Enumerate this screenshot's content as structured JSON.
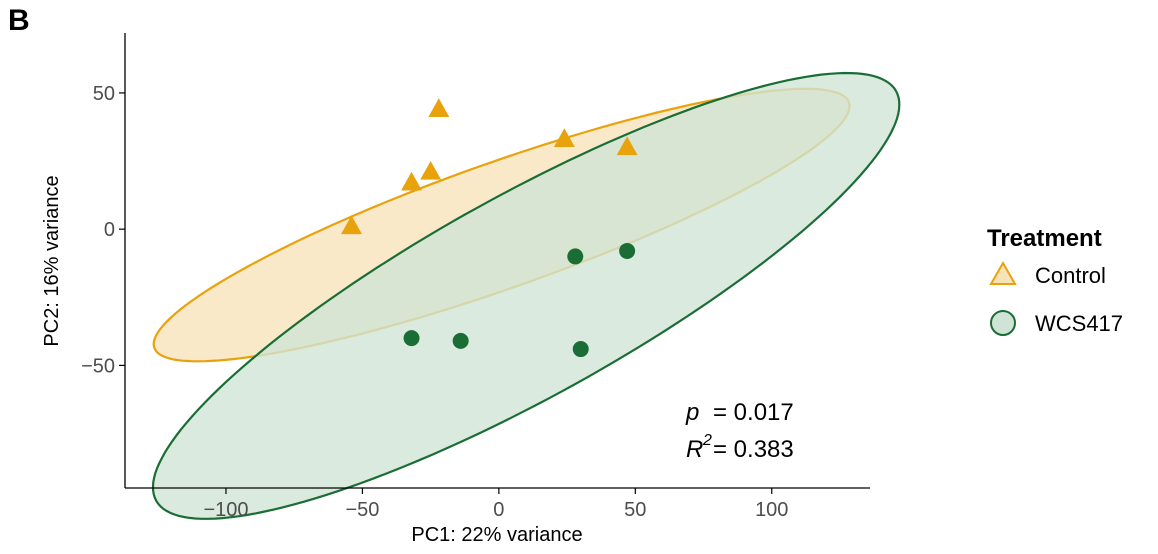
{
  "panel_label": "B",
  "chart_data": {
    "type": "scatter",
    "xlabel": "PC1: 22% variance",
    "ylabel": "PC2: 16% variance",
    "xlim": [
      -137,
      136
    ],
    "ylim": [
      -95,
      72
    ],
    "xticks": [
      -100,
      -50,
      0,
      50,
      100
    ],
    "xtick_labels": [
      "−100",
      "−50",
      "0",
      "50",
      "100"
    ],
    "yticks": [
      -50,
      0,
      50
    ],
    "ytick_labels": [
      "−50",
      "0",
      "50"
    ],
    "grid": false,
    "legend": {
      "title": "Treatment",
      "position": "right",
      "entries": [
        "Control",
        "WCS417"
      ]
    },
    "series": [
      {
        "name": "Control",
        "marker": "triangle",
        "color": "#e8a20c",
        "fill": "#f7e3b8",
        "points": [
          [
            -54,
            1
          ],
          [
            -32,
            17
          ],
          [
            -25,
            21
          ],
          [
            -22,
            44
          ],
          [
            24,
            33
          ],
          [
            47,
            30
          ]
        ],
        "ellipse": {
          "cx": 1,
          "cy": 1.5,
          "rx": 135,
          "ry": 23,
          "angle_deg": 19.5
        }
      },
      {
        "name": "WCS417",
        "marker": "circle",
        "color": "#1a6e35",
        "fill": "#cfe4d6",
        "points": [
          [
            -32,
            -40
          ],
          [
            -14,
            -41
          ],
          [
            28,
            -10
          ],
          [
            30,
            -44
          ],
          [
            47,
            -8
          ]
        ],
        "ellipse": {
          "cx": 10,
          "cy": -24.5,
          "rx": 155,
          "ry": 37,
          "angle_deg": 29
        }
      }
    ],
    "annotations": [
      {
        "symbol": "p",
        "text": "= 0.017"
      },
      {
        "symbol": "R",
        "sup": "2",
        "text": "= 0.383"
      }
    ]
  }
}
